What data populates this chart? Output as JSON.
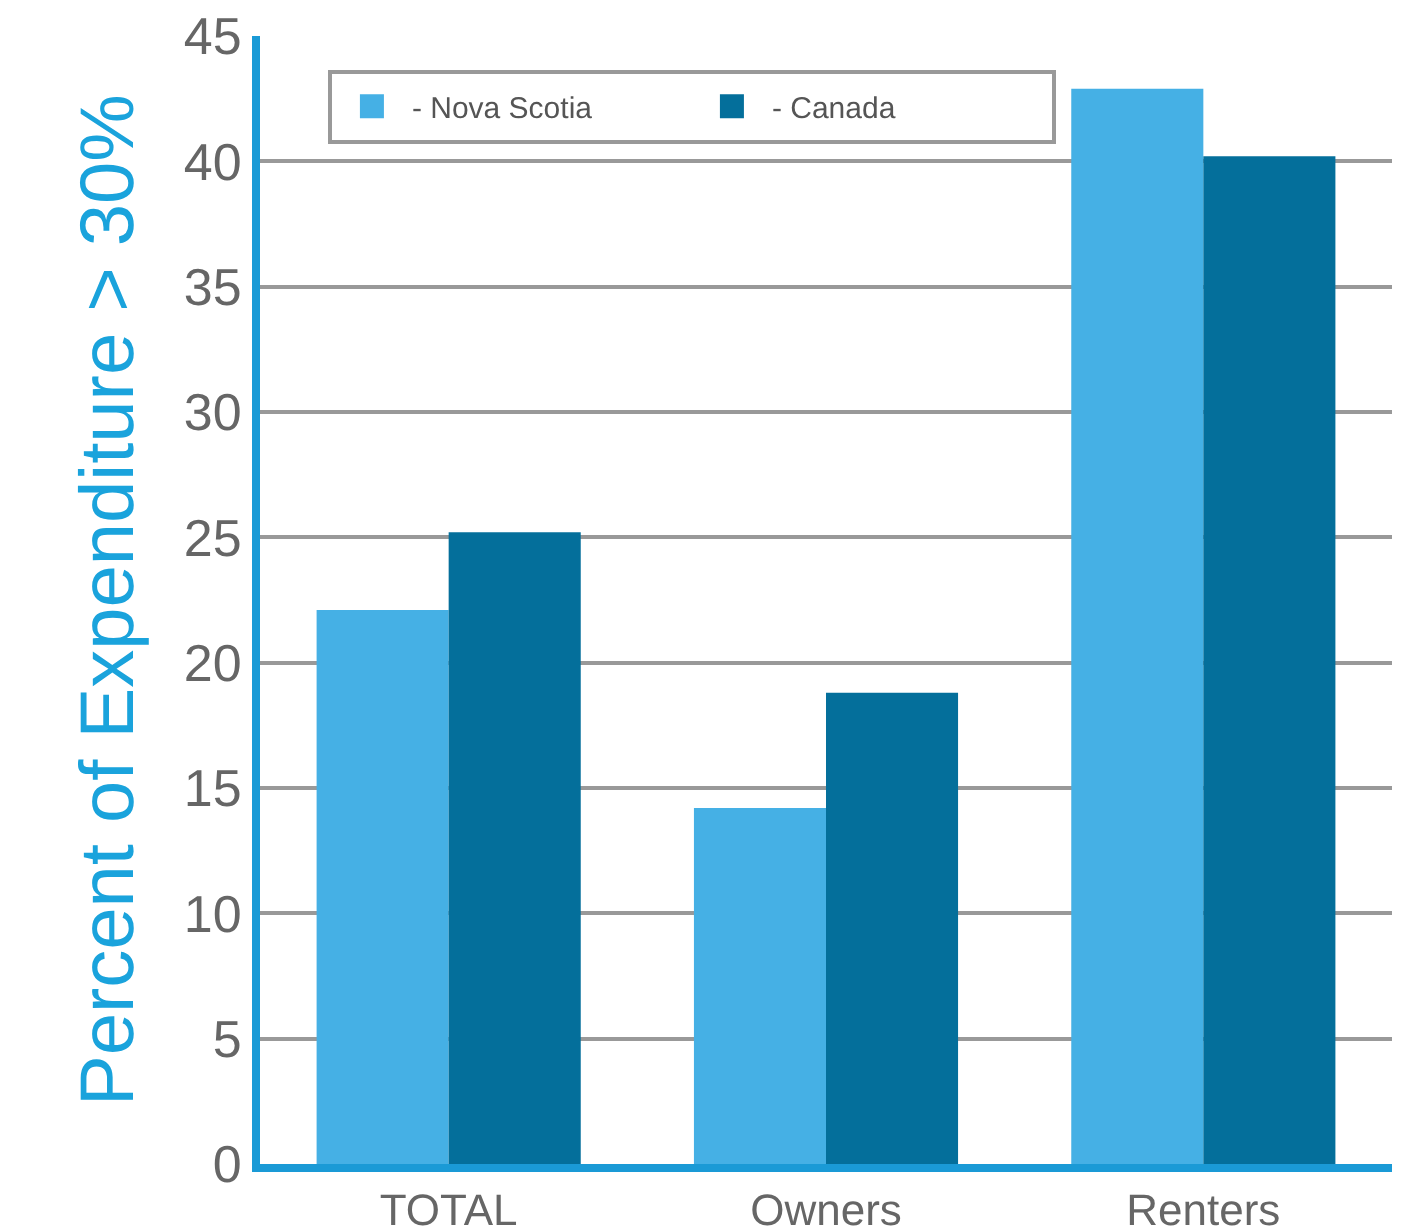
{
  "chart_data": {
    "type": "bar",
    "ylabel": "Percent of Expenditure > 30%",
    "categories": [
      "TOTAL",
      "Owners",
      "Renters"
    ],
    "series": [
      {
        "name": "- Nova Scotia",
        "color": "#45b0e5",
        "values": [
          22.1,
          14.2,
          42.9
        ]
      },
      {
        "name": "- Canada",
        "color": "#046f9b",
        "values": [
          25.2,
          18.8,
          40.2
        ]
      }
    ],
    "ylim": [
      0,
      45
    ],
    "yticks": [
      0,
      5,
      10,
      15,
      20,
      25,
      30,
      35,
      40,
      45
    ],
    "grid": "y",
    "legend": "top left"
  }
}
